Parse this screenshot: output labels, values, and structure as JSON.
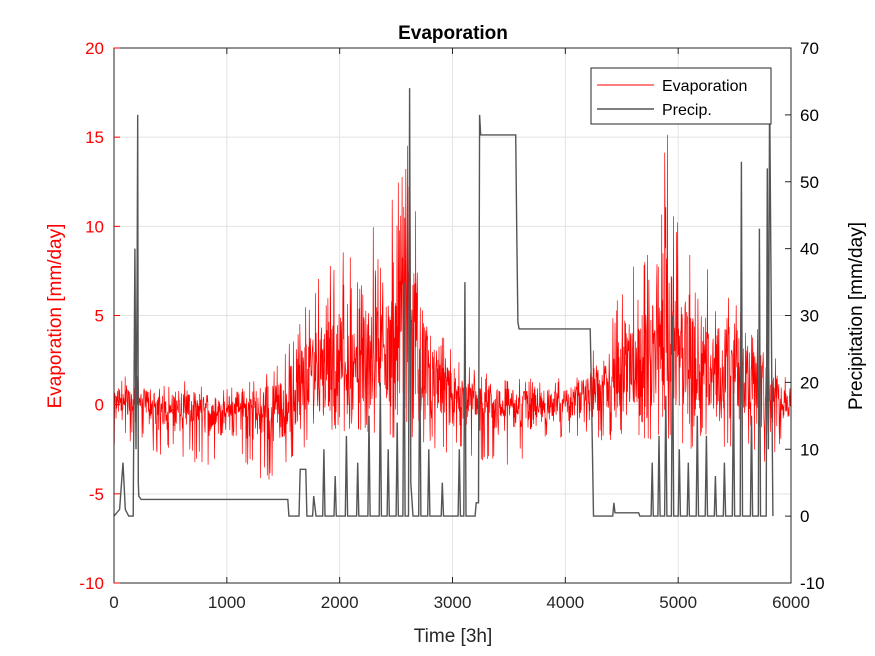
{
  "chart_data": {
    "type": "line",
    "title": "Evaporation",
    "xlabel": "Time [3h]",
    "ylabel_left": "Evaporation [mm/day]",
    "ylabel_right": "Precipitation [mm/day]",
    "xlim": [
      0,
      6000
    ],
    "ylim_left": [
      -10,
      20
    ],
    "ylim_right": [
      -10,
      70
    ],
    "x_ticks": [
      0,
      1000,
      2000,
      3000,
      4000,
      5000,
      6000
    ],
    "y_left_ticks": [
      -10,
      -5,
      0,
      5,
      10,
      15,
      20
    ],
    "y_right_ticks": [
      -10,
      0,
      10,
      20,
      30,
      40,
      50,
      60,
      70
    ],
    "grid": true,
    "legend_position": "top-right",
    "colors": {
      "evaporation": "#ff0000",
      "precip": "#555555",
      "left_axis": "#ff0000",
      "right_axis": "#000000"
    },
    "series": [
      {
        "name": "Evaporation",
        "axis": "left",
        "color": "#ff0000",
        "x": [
          0,
          200,
          400,
          600,
          800,
          1000,
          1200,
          1400,
          1600,
          1800,
          2000,
          2200,
          2400,
          2600,
          2800,
          3000,
          3200,
          3400,
          3600,
          3800,
          4000,
          4200,
          4400,
          4600,
          4800,
          4900,
          5000,
          5200,
          5400,
          5600,
          5800,
          6000
        ],
        "envelope_max": [
          1.5,
          2.0,
          1.0,
          1.5,
          1.0,
          1.0,
          1.5,
          2.0,
          4.0,
          7.0,
          9.0,
          10.0,
          10.0,
          15.5,
          5.0,
          3.0,
          2.0,
          1.5,
          1.5,
          1.5,
          1.5,
          2.5,
          5.0,
          8.0,
          9.0,
          16.0,
          10.0,
          8.0,
          7.0,
          5.0,
          3.5,
          1.0
        ],
        "envelope_min": [
          -2.5,
          -2.0,
          -3.0,
          -3.0,
          -3.5,
          -3.5,
          -4.0,
          -4.5,
          -3.0,
          -2.0,
          -1.5,
          -1.5,
          -2.0,
          -2.0,
          -2.5,
          -3.0,
          -3.0,
          -3.5,
          -3.5,
          -2.5,
          -2.0,
          -2.0,
          -2.0,
          -2.0,
          -2.0,
          -2.0,
          -2.0,
          -3.5,
          -3.0,
          -3.0,
          -3.5,
          -2.0
        ]
      },
      {
        "name": "Precip.",
        "axis": "right",
        "color": "#555555",
        "points": [
          [
            0,
            0
          ],
          [
            50,
            1
          ],
          [
            80,
            8
          ],
          [
            100,
            1
          ],
          [
            130,
            0
          ],
          [
            170,
            0
          ],
          [
            185,
            40
          ],
          [
            195,
            10
          ],
          [
            205,
            35
          ],
          [
            210,
            60
          ],
          [
            215,
            5
          ],
          [
            220,
            3
          ],
          [
            240,
            2.5
          ],
          [
            1540,
            2.5
          ],
          [
            1550,
            0
          ],
          [
            1640,
            0
          ],
          [
            1650,
            7
          ],
          [
            1700,
            7
          ],
          [
            1710,
            0
          ],
          [
            1760,
            0
          ],
          [
            1770,
            3
          ],
          [
            1790,
            0
          ],
          [
            1850,
            0
          ],
          [
            1860,
            10
          ],
          [
            1870,
            0
          ],
          [
            1950,
            0
          ],
          [
            1960,
            6
          ],
          [
            1970,
            0
          ],
          [
            2050,
            0
          ],
          [
            2060,
            12
          ],
          [
            2070,
            0
          ],
          [
            2150,
            0
          ],
          [
            2160,
            8
          ],
          [
            2170,
            0
          ],
          [
            2250,
            0
          ],
          [
            2260,
            15
          ],
          [
            2270,
            0
          ],
          [
            2350,
            0
          ],
          [
            2360,
            20
          ],
          [
            2370,
            0
          ],
          [
            2420,
            0
          ],
          [
            2430,
            10
          ],
          [
            2440,
            0
          ],
          [
            2500,
            0
          ],
          [
            2510,
            14
          ],
          [
            2520,
            0
          ],
          [
            2560,
            0
          ],
          [
            2570,
            35
          ],
          [
            2580,
            0
          ],
          [
            2610,
            0
          ],
          [
            2620,
            64
          ],
          [
            2630,
            5
          ],
          [
            2650,
            0
          ],
          [
            2700,
            0
          ],
          [
            2710,
            25
          ],
          [
            2720,
            0
          ],
          [
            2780,
            0
          ],
          [
            2790,
            10
          ],
          [
            2800,
            0
          ],
          [
            2900,
            0
          ],
          [
            2910,
            5
          ],
          [
            2920,
            0
          ],
          [
            3050,
            0
          ],
          [
            3060,
            10
          ],
          [
            3070,
            0
          ],
          [
            3100,
            0
          ],
          [
            3110,
            35
          ],
          [
            3120,
            0
          ],
          [
            3200,
            0
          ],
          [
            3210,
            2
          ],
          [
            3230,
            2
          ],
          [
            3240,
            60
          ],
          [
            3250,
            57
          ],
          [
            3560,
            57
          ],
          [
            3570,
            42
          ],
          [
            3580,
            29
          ],
          [
            3590,
            28
          ],
          [
            4220,
            28
          ],
          [
            4230,
            20
          ],
          [
            4240,
            10
          ],
          [
            4250,
            0
          ],
          [
            4420,
            0
          ],
          [
            4430,
            2
          ],
          [
            4440,
            0.5
          ],
          [
            4650,
            0.5
          ],
          [
            4660,
            0
          ],
          [
            4760,
            0
          ],
          [
            4770,
            8
          ],
          [
            4780,
            0
          ],
          [
            4820,
            0
          ],
          [
            4830,
            12
          ],
          [
            4840,
            0
          ],
          [
            4880,
            0
          ],
          [
            4890,
            18
          ],
          [
            4900,
            0
          ],
          [
            4940,
            0
          ],
          [
            4950,
            30
          ],
          [
            4960,
            0
          ],
          [
            5000,
            0
          ],
          [
            5010,
            10
          ],
          [
            5020,
            0
          ],
          [
            5080,
            0
          ],
          [
            5090,
            8
          ],
          [
            5100,
            0
          ],
          [
            5160,
            0
          ],
          [
            5170,
            15
          ],
          [
            5180,
            0
          ],
          [
            5240,
            0
          ],
          [
            5250,
            12
          ],
          [
            5260,
            0
          ],
          [
            5320,
            0
          ],
          [
            5330,
            6
          ],
          [
            5340,
            0
          ],
          [
            5400,
            0
          ],
          [
            5410,
            8
          ],
          [
            5420,
            0
          ],
          [
            5480,
            0
          ],
          [
            5490,
            20
          ],
          [
            5500,
            0
          ],
          [
            5550,
            0
          ],
          [
            5560,
            53
          ],
          [
            5570,
            0
          ],
          [
            5640,
            0
          ],
          [
            5650,
            15
          ],
          [
            5660,
            0
          ],
          [
            5710,
            0
          ],
          [
            5720,
            43
          ],
          [
            5730,
            0
          ],
          [
            5780,
            0
          ],
          [
            5790,
            52
          ],
          [
            5800,
            10
          ],
          [
            5810,
            64
          ],
          [
            5830,
            20
          ],
          [
            5840,
            0
          ]
        ]
      }
    ]
  }
}
